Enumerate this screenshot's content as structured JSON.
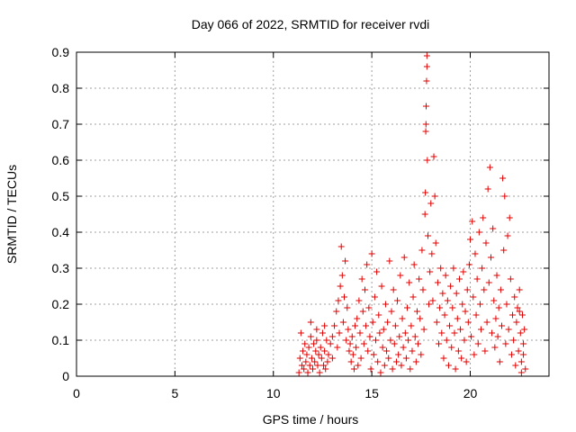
{
  "chart_data": {
    "type": "scatter",
    "title": "Day 066 of 2022, SRMTID for receiver rvdi",
    "xlabel": "GPS time / hours",
    "ylabel": "SRMTID / TECUs",
    "xlim": [
      0,
      24
    ],
    "ylim": [
      0,
      0.9
    ],
    "xticks": [
      0,
      5,
      10,
      15,
      20
    ],
    "yticks": [
      0,
      0.1,
      0.2,
      0.3,
      0.4,
      0.5,
      0.6,
      0.7,
      0.8,
      0.9
    ],
    "ytick_labels": [
      "0",
      "0.1",
      "0.2",
      "0.3",
      "0.4",
      "0.5",
      "0.6",
      "0.7",
      "0.8",
      "0.9"
    ],
    "grid": true,
    "marker": "+",
    "color": "#e00000",
    "series": [
      {
        "name": "SRMTID",
        "points": [
          [
            11.3,
            0.01
          ],
          [
            11.35,
            0.05
          ],
          [
            11.4,
            0.12
          ],
          [
            11.45,
            0.03
          ],
          [
            11.5,
            0.07
          ],
          [
            11.55,
            0.02
          ],
          [
            11.6,
            0.09
          ],
          [
            11.65,
            0.04
          ],
          [
            11.7,
            0.06
          ],
          [
            11.75,
            0.01
          ],
          [
            11.8,
            0.08
          ],
          [
            11.85,
            0.03
          ],
          [
            11.9,
            0.11
          ],
          [
            11.95,
            0.05
          ],
          [
            12.0,
            0.02
          ],
          [
            12.05,
            0.09
          ],
          [
            12.1,
            0.04
          ],
          [
            12.15,
            0.07
          ],
          [
            12.2,
            0.1
          ],
          [
            12.25,
            0.03
          ],
          [
            12.3,
            0.06
          ],
          [
            12.35,
            0.01
          ],
          [
            12.4,
            0.08
          ],
          [
            12.45,
            0.05
          ],
          [
            12.5,
            0.12
          ],
          [
            12.55,
            0.03
          ],
          [
            12.6,
            0.07
          ],
          [
            12.65,
            0.02
          ],
          [
            12.7,
            0.1
          ],
          [
            12.75,
            0.04
          ],
          [
            11.9,
            0.15
          ],
          [
            12.2,
            0.13
          ],
          [
            12.6,
            0.14
          ],
          [
            12.8,
            0.06
          ],
          [
            12.9,
            0.09
          ],
          [
            13.0,
            0.11
          ],
          [
            13.0,
            0.05
          ],
          [
            13.1,
            0.14
          ],
          [
            13.2,
            0.18
          ],
          [
            13.25,
            0.08
          ],
          [
            13.3,
            0.21
          ],
          [
            13.35,
            0.12
          ],
          [
            13.4,
            0.25
          ],
          [
            13.45,
            0.36
          ],
          [
            13.5,
            0.28
          ],
          [
            13.55,
            0.15
          ],
          [
            13.6,
            0.22
          ],
          [
            13.65,
            0.32
          ],
          [
            13.7,
            0.1
          ],
          [
            13.75,
            0.19
          ],
          [
            13.8,
            0.13
          ],
          [
            13.85,
            0.07
          ],
          [
            13.9,
            0.09
          ],
          [
            13.95,
            0.04
          ],
          [
            14.0,
            0.11
          ],
          [
            14.05,
            0.06
          ],
          [
            14.1,
            0.02
          ],
          [
            14.15,
            0.14
          ],
          [
            14.2,
            0.08
          ],
          [
            14.25,
            0.16
          ],
          [
            14.3,
            0.03
          ],
          [
            14.35,
            0.21
          ],
          [
            14.4,
            0.12
          ],
          [
            14.45,
            0.05
          ],
          [
            14.5,
            0.27
          ],
          [
            14.55,
            0.18
          ],
          [
            14.6,
            0.09
          ],
          [
            14.65,
            0.24
          ],
          [
            14.7,
            0.14
          ],
          [
            14.75,
            0.31
          ],
          [
            14.8,
            0.07
          ],
          [
            14.85,
            0.19
          ],
          [
            14.9,
            0.11
          ],
          [
            14.95,
            0.02
          ],
          [
            15.0,
            0.34
          ],
          [
            15.05,
            0.15
          ],
          [
            15.1,
            0.06
          ],
          [
            15.15,
            0.22
          ],
          [
            15.2,
            0.1
          ],
          [
            15.25,
            0.29
          ],
          [
            15.3,
            0.04
          ],
          [
            15.35,
            0.17
          ],
          [
            15.4,
            0.12
          ],
          [
            15.45,
            0.01
          ],
          [
            15.5,
            0.25
          ],
          [
            15.55,
            0.08
          ],
          [
            15.6,
            0.13
          ],
          [
            15.65,
            0.03
          ],
          [
            15.7,
            0.2
          ],
          [
            15.75,
            0.07
          ],
          [
            15.8,
            0.15
          ],
          [
            15.85,
            0.05
          ],
          [
            15.9,
            0.32
          ],
          [
            15.95,
            0.1
          ],
          [
            16.0,
            0.18
          ],
          [
            16.05,
            0.02
          ],
          [
            16.1,
            0.24
          ],
          [
            16.15,
            0.09
          ],
          [
            16.2,
            0.14
          ],
          [
            16.25,
            0.04
          ],
          [
            16.3,
            0.21
          ],
          [
            16.35,
            0.06
          ],
          [
            16.4,
            0.11
          ],
          [
            16.45,
            0.28
          ],
          [
            16.5,
            0.03
          ],
          [
            16.55,
            0.16
          ],
          [
            16.6,
            0.08
          ],
          [
            16.65,
            0.33
          ],
          [
            16.7,
            0.12
          ],
          [
            16.75,
            0.05
          ],
          [
            16.8,
            0.19
          ],
          [
            16.85,
            0.1
          ],
          [
            16.9,
            0.26
          ],
          [
            16.95,
            0.02
          ],
          [
            17.0,
            0.14
          ],
          [
            17.05,
            0.07
          ],
          [
            17.1,
            0.22
          ],
          [
            17.15,
            0.31
          ],
          [
            17.2,
            0.11
          ],
          [
            17.25,
            0.04
          ],
          [
            17.3,
            0.18
          ],
          [
            17.35,
            0.09
          ],
          [
            17.4,
            0.27
          ],
          [
            17.45,
            0.16
          ],
          [
            17.5,
            0.06
          ],
          [
            17.55,
            0.35
          ],
          [
            17.6,
            0.24
          ],
          [
            17.65,
            0.13
          ],
          [
            17.7,
            0.45
          ],
          [
            17.72,
            0.51
          ],
          [
            17.74,
            0.68
          ],
          [
            17.75,
            0.7
          ],
          [
            17.76,
            0.75
          ],
          [
            17.78,
            0.82
          ],
          [
            17.8,
            0.86
          ],
          [
            17.8,
            0.89
          ],
          [
            17.82,
            0.6
          ],
          [
            17.85,
            0.39
          ],
          [
            17.9,
            0.2
          ],
          [
            17.95,
            0.29
          ],
          [
            18.0,
            0.48
          ],
          [
            18.05,
            0.34
          ],
          [
            18.1,
            0.21
          ],
          [
            18.15,
            0.61
          ],
          [
            18.2,
            0.5
          ],
          [
            18.25,
            0.37
          ],
          [
            18.3,
            0.15
          ],
          [
            18.35,
            0.26
          ],
          [
            18.4,
            0.09
          ],
          [
            18.45,
            0.19
          ],
          [
            18.5,
            0.3
          ],
          [
            18.55,
            0.12
          ],
          [
            18.6,
            0.23
          ],
          [
            18.65,
            0.05
          ],
          [
            18.7,
            0.17
          ],
          [
            18.75,
            0.28
          ],
          [
            18.8,
            0.1
          ],
          [
            18.85,
            0.21
          ],
          [
            18.9,
            0.03
          ],
          [
            18.95,
            0.14
          ],
          [
            19.0,
            0.25
          ],
          [
            19.05,
            0.08
          ],
          [
            19.1,
            0.19
          ],
          [
            19.15,
            0.3
          ],
          [
            19.2,
            0.12
          ],
          [
            19.25,
            0.02
          ],
          [
            19.3,
            0.23
          ],
          [
            19.35,
            0.16
          ],
          [
            19.4,
            0.07
          ],
          [
            19.45,
            0.27
          ],
          [
            19.5,
            0.13
          ],
          [
            19.55,
            0.05
          ],
          [
            19.6,
            0.2
          ],
          [
            19.65,
            0.29
          ],
          [
            19.7,
            0.1
          ],
          [
            19.75,
            0.18
          ],
          [
            19.8,
            0.04
          ],
          [
            19.85,
            0.24
          ],
          [
            19.9,
            0.15
          ],
          [
            19.95,
            0.31
          ],
          [
            20.0,
            0.38
          ],
          [
            20.05,
            0.11
          ],
          [
            20.1,
            0.43
          ],
          [
            20.15,
            0.22
          ],
          [
            20.2,
            0.06
          ],
          [
            20.25,
            0.34
          ],
          [
            20.3,
            0.17
          ],
          [
            20.35,
            0.27
          ],
          [
            20.4,
            0.09
          ],
          [
            20.45,
            0.4
          ],
          [
            20.5,
            0.2
          ],
          [
            20.55,
            0.13
          ],
          [
            20.6,
            0.3
          ],
          [
            20.65,
            0.44
          ],
          [
            20.7,
            0.24
          ],
          [
            20.75,
            0.07
          ],
          [
            20.8,
            0.37
          ],
          [
            20.85,
            0.15
          ],
          [
            20.9,
            0.52
          ],
          [
            20.95,
            0.26
          ],
          [
            21.0,
            0.58
          ],
          [
            21.05,
            0.33
          ],
          [
            21.1,
            0.12
          ],
          [
            21.15,
            0.41
          ],
          [
            21.2,
            0.21
          ],
          [
            21.25,
            0.08
          ],
          [
            21.3,
            0.16
          ],
          [
            21.35,
            0.28
          ],
          [
            21.4,
            0.11
          ],
          [
            21.45,
            0.19
          ],
          [
            21.5,
            0.04
          ],
          [
            21.55,
            0.24
          ],
          [
            21.6,
            0.14
          ],
          [
            21.65,
            0.55
          ],
          [
            21.7,
            0.35
          ],
          [
            21.75,
            0.5
          ],
          [
            21.8,
            0.09
          ],
          [
            21.85,
            0.2
          ],
          [
            21.9,
            0.39
          ],
          [
            21.95,
            0.13
          ],
          [
            22.0,
            0.44
          ],
          [
            22.05,
            0.27
          ],
          [
            22.1,
            0.06
          ],
          [
            22.15,
            0.17
          ],
          [
            22.2,
            0.1
          ],
          [
            22.25,
            0.22
          ],
          [
            22.3,
            0.03
          ],
          [
            22.35,
            0.15
          ],
          [
            22.4,
            0.19
          ],
          [
            22.45,
            0.07
          ],
          [
            22.5,
            0.24
          ],
          [
            22.55,
            0.12
          ],
          [
            22.6,
            0.04
          ],
          [
            22.65,
            0.17
          ],
          [
            22.7,
            0.09
          ],
          [
            22.75,
            0.13
          ],
          [
            22.8,
            0.02
          ],
          [
            22.5,
            0.18
          ],
          [
            22.6,
            0.01
          ],
          [
            22.7,
            0.06
          ]
        ]
      }
    ]
  }
}
